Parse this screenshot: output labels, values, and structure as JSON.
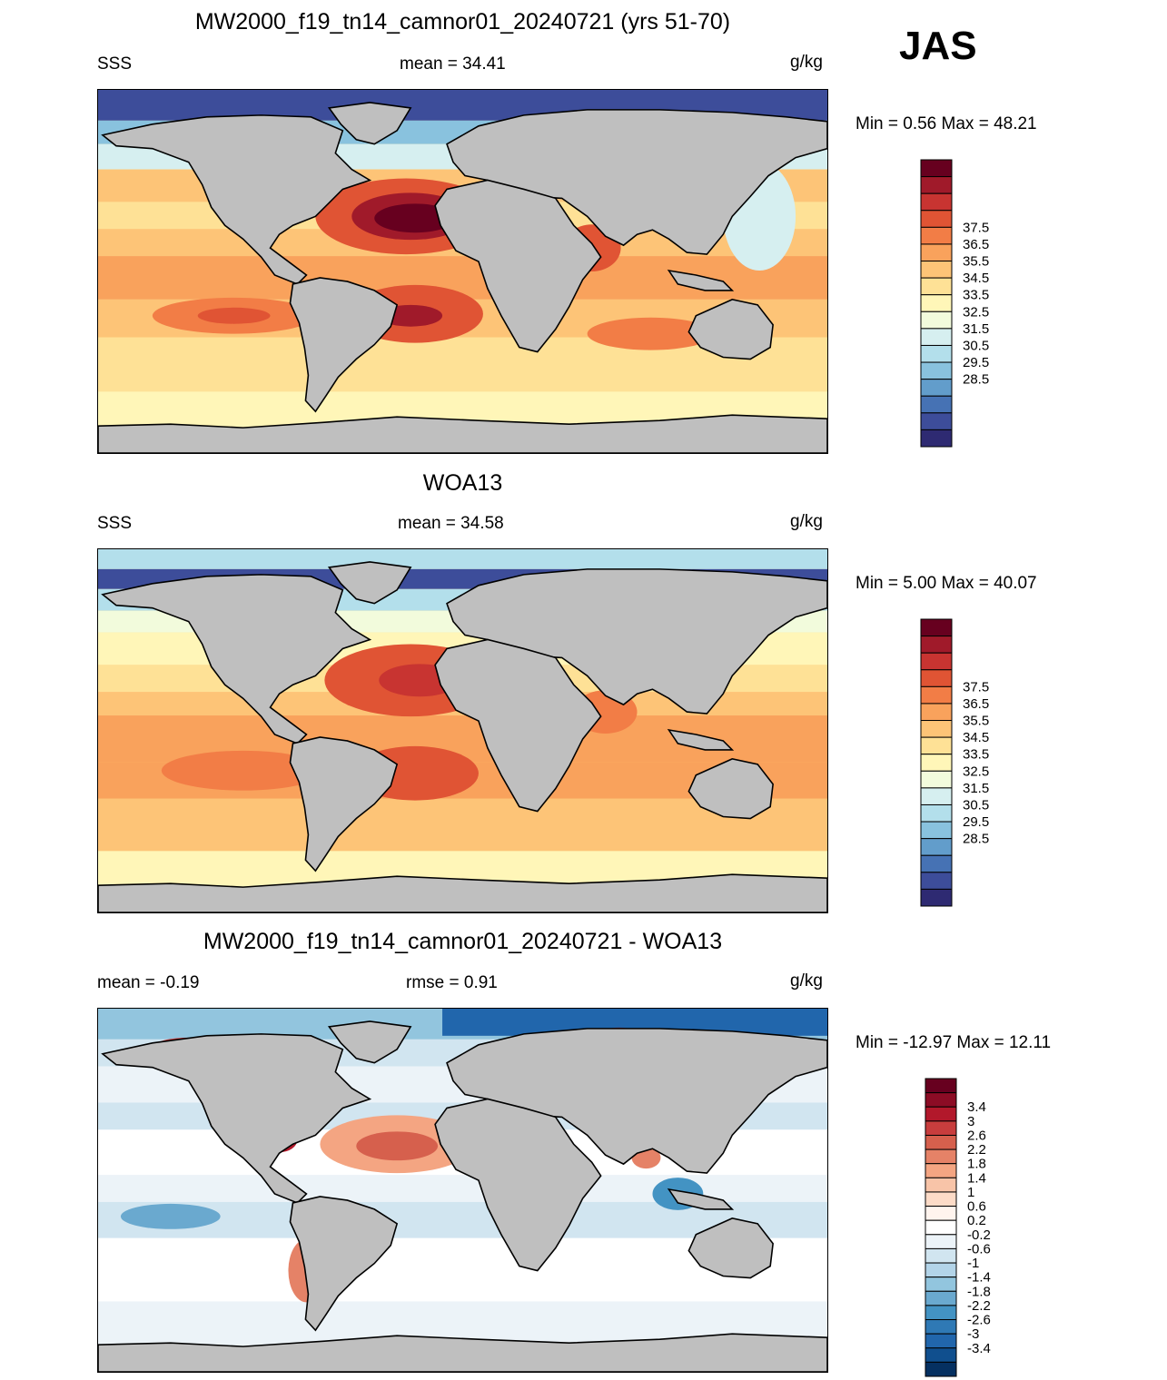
{
  "season": "JAS",
  "panels": [
    {
      "title": "MW2000_f19_tn14_camnor01_20240721 (yrs 51-70)",
      "left_label": "SSS",
      "center_label": "mean =  34.41",
      "units": "g/kg",
      "minmax": "Min =   0.56 Max =  48.21"
    },
    {
      "title": "WOA13",
      "left_label": "SSS",
      "center_label": "mean =  34.58",
      "units": "g/kg",
      "minmax": "Min =   5.00 Max =  40.07"
    },
    {
      "title": "MW2000_f19_tn14_camnor01_20240721 - WOA13",
      "left_label": "mean =  -0.19",
      "center_label": "rmse =   0.91",
      "units": "g/kg",
      "minmax": "Min = -12.97 Max =  12.11"
    }
  ],
  "colorbars": {
    "sss": {
      "labels": [
        "37.5",
        "36.5",
        "35.5",
        "34.5",
        "33.5",
        "32.5",
        "31.5",
        "30.5",
        "29.5",
        "28.5"
      ],
      "colors": [
        "#67001f",
        "#a01a2a",
        "#c83431",
        "#e05434",
        "#f27d46",
        "#f9a25c",
        "#fdc477",
        "#fee196",
        "#fff6b8",
        "#f2fbdc",
        "#d6eff0",
        "#b3dfeb",
        "#89c2de",
        "#629dcb",
        "#4672b4",
        "#3d4d9a",
        "#2e2a72"
      ]
    },
    "diff": {
      "labels": [
        "3.4",
        "3",
        "2.6",
        "2.2",
        "1.8",
        "1.4",
        "1",
        "0.6",
        "0.2",
        "-0.2",
        "-0.6",
        "-1",
        "-1.4",
        "-1.8",
        "-2.2",
        "-2.6",
        "-3",
        "-3.4"
      ],
      "colors": [
        "#67001f",
        "#8c0c25",
        "#b2182b",
        "#c83d3d",
        "#d6604d",
        "#e58267",
        "#f4a582",
        "#f8c4a8",
        "#fddbc7",
        "#fff4ee",
        "#ffffff",
        "#ecf3f8",
        "#d1e5f0",
        "#b3d4e8",
        "#92c5de",
        "#6aa9cf",
        "#4393c3",
        "#2f79b5",
        "#2166ac",
        "#104f8e",
        "#053061"
      ]
    }
  }
}
